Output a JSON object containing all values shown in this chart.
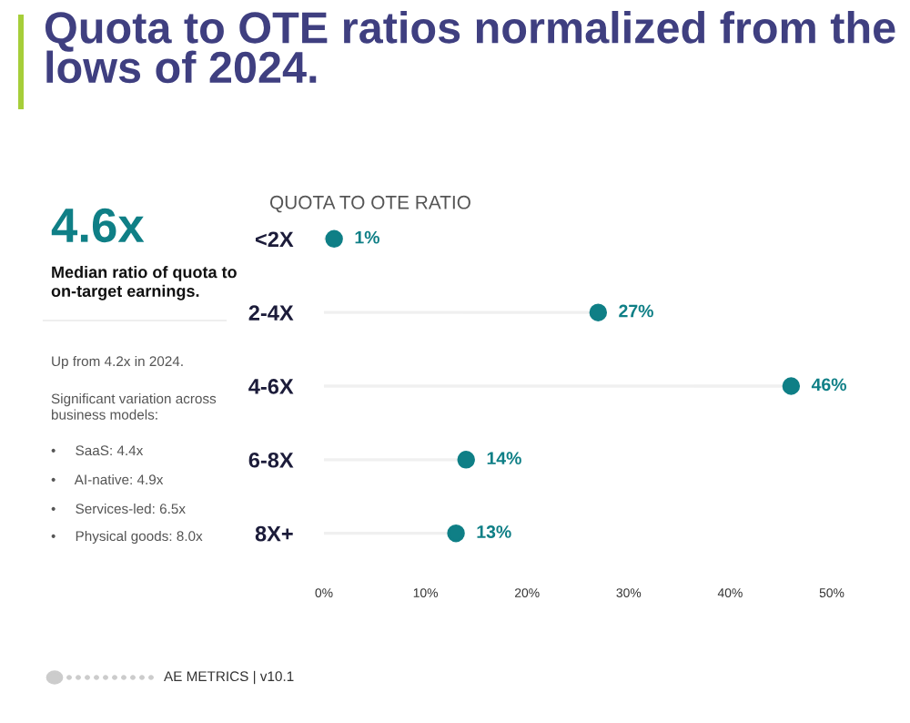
{
  "chart_data": {
    "type": "lollipop",
    "orientation": "horizontal",
    "title": "Quota to OTE ratios normalized from the lows of 2024.",
    "subtitle": "QUOTA TO OTE RATIO",
    "categories": [
      "<2X",
      "2-4X",
      "4-6X",
      "6-8X",
      "8X+"
    ],
    "values": [
      1,
      27,
      46,
      14,
      13
    ],
    "value_labels": [
      "1%",
      "27%",
      "46%",
      "14%",
      "13%"
    ],
    "color": "#0f7f86",
    "xlim": [
      0,
      50
    ],
    "xticks": [
      {
        "value": 0,
        "label": "0%"
      },
      {
        "value": 10,
        "label": "10%"
      },
      {
        "value": 20,
        "label": "20%"
      },
      {
        "value": 30,
        "label": "30%"
      },
      {
        "value": 40,
        "label": "40%"
      },
      {
        "value": 50,
        "label": "50%"
      }
    ],
    "grid": false,
    "legend": false,
    "marker": "circle",
    "annotations": [
      "4.6x",
      "Median ratio of quota to\non-target earnings.",
      "Up from 4.2x in 2024.",
      "Significant variation across\nbusiness models:",
      "•     SaaS: 4.4x",
      "•     AI-native: 4.9x",
      "•     Services-led: 6.5x",
      "•     Physical goods: 8.0x",
      "AE METRICS | v10.1"
    ]
  }
}
